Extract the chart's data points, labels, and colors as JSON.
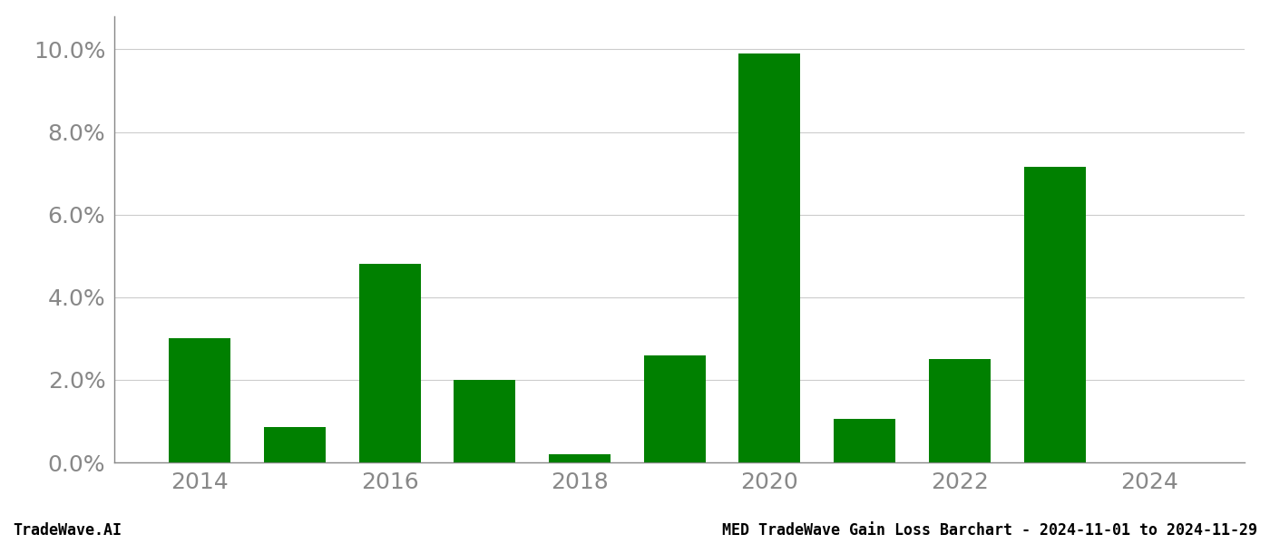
{
  "years": [
    2014,
    2015,
    2016,
    2017,
    2018,
    2019,
    2020,
    2021,
    2022,
    2023,
    2024
  ],
  "values": [
    0.03,
    0.0085,
    0.048,
    0.02,
    0.002,
    0.026,
    0.099,
    0.0105,
    0.025,
    0.0715,
    0.0
  ],
  "bar_color": "#008000",
  "background_color": "#ffffff",
  "grid_color": "#cccccc",
  "axis_color": "#888888",
  "tick_label_color": "#888888",
  "footer_left_color": "#000000",
  "footer_right_color": "#000000",
  "ylim": [
    0,
    0.108
  ],
  "yticks": [
    0.0,
    0.02,
    0.04,
    0.06,
    0.08,
    0.1
  ],
  "footer_left": "TradeWave.AI",
  "footer_right": "MED TradeWave Gain Loss Barchart - 2024-11-01 to 2024-11-29",
  "footer_fontsize": 12,
  "tick_fontsize": 18,
  "bar_width": 0.65,
  "xlim": [
    2013.1,
    2025.0
  ]
}
